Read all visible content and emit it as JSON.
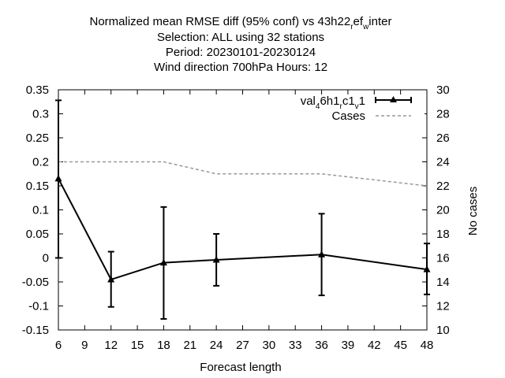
{
  "chart_data": {
    "type": "line",
    "title_lines": [
      "Normalized mean RMSE diff (95% conf) vs 43h22",
      "Selection: ALL using    32 stations",
      "Period: 20230101-20230124",
      "Wind direction 700hPa   Hours:  12"
    ],
    "title_suffix": {
      "a": "r",
      "b": "ef",
      "c": "w",
      "d": "inter"
    },
    "xlabel": "Forecast length",
    "ylabel_right": "No cases",
    "xlim": [
      6,
      48
    ],
    "ylim": [
      -0.15,
      0.35
    ],
    "y2lim": [
      10,
      30
    ],
    "x_ticks": [
      "6",
      "9",
      "12",
      "15",
      "18",
      "21",
      "24",
      "27",
      "30",
      "33",
      "36",
      "39",
      "42",
      "45",
      "48"
    ],
    "y_ticks": [
      "-0.15",
      "-0.1",
      "-0.05",
      "0",
      "0.05",
      "0.1",
      "0.15",
      "0.2",
      "0.25",
      "0.3",
      "0.35"
    ],
    "y2_ticks": [
      "10",
      "12",
      "14",
      "16",
      "18",
      "20",
      "22",
      "24",
      "26",
      "28",
      "30"
    ],
    "legend": {
      "placement": "top-right",
      "series1_parts": [
        "val",
        "4",
        "6h1",
        "r",
        "c1",
        "v",
        "1"
      ],
      "series2_label": "Cases"
    },
    "series": [
      {
        "x": [
          6,
          12,
          18,
          24,
          36,
          48
        ],
        "y": [
          0.165,
          -0.045,
          -0.01,
          -0.004,
          0.007,
          -0.024
        ],
        "err_low": [
          0.0,
          -0.102,
          -0.127,
          -0.058,
          -0.078,
          -0.076
        ],
        "err_high": [
          0.328,
          0.013,
          0.106,
          0.05,
          0.092,
          0.03
        ],
        "color": "#000000",
        "marker": "triangle"
      },
      {
        "axis": "y2",
        "x": [
          6,
          18,
          21,
          24,
          30,
          36,
          48
        ],
        "y": [
          24,
          24,
          23.5,
          23,
          23,
          23,
          22
        ],
        "color": "#999999",
        "dash": "dashed"
      }
    ],
    "grid": false
  }
}
